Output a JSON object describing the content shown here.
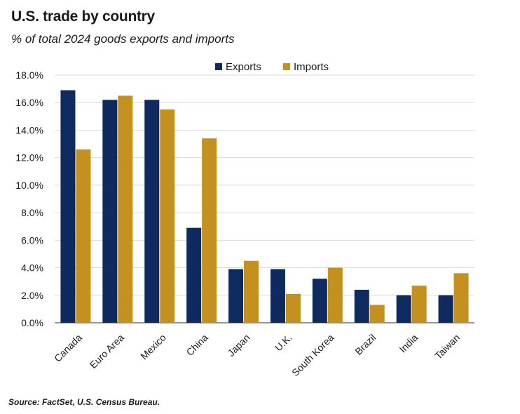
{
  "header": {
    "title": "U.S. trade by country",
    "subtitle": "% of total 2024 goods exports and imports"
  },
  "footer": {
    "source": "Source: FactSet, U.S. Census Bureau."
  },
  "colors": {
    "exports": "#0f2a5e",
    "imports": "#c4901f",
    "grid": "#d9d9d9",
    "axis": "#595959"
  },
  "chart_data": {
    "type": "bar",
    "title": "U.S. trade by country",
    "subtitle": "% of total 2024 goods exports and imports",
    "categories": [
      "Canada",
      "Euro Area",
      "Mexico",
      "China",
      "Japan",
      "U.K.",
      "South Korea",
      "Brazil",
      "India",
      "Taiwan"
    ],
    "series": [
      {
        "name": "Exports",
        "values": [
          16.9,
          16.2,
          16.2,
          6.9,
          3.9,
          3.9,
          3.2,
          2.4,
          2.0,
          2.0
        ]
      },
      {
        "name": "Imports",
        "values": [
          12.6,
          16.5,
          15.5,
          13.4,
          4.5,
          2.1,
          4.0,
          1.3,
          2.7,
          3.6
        ]
      }
    ],
    "ylim": [
      0,
      18
    ],
    "yticks": [
      "0.0%",
      "2.0%",
      "4.0%",
      "6.0%",
      "8.0%",
      "10.0%",
      "12.0%",
      "14.0%",
      "16.0%",
      "18.0%"
    ],
    "grid": true,
    "legend_position": "top-center",
    "xlabel": "",
    "ylabel": ""
  }
}
